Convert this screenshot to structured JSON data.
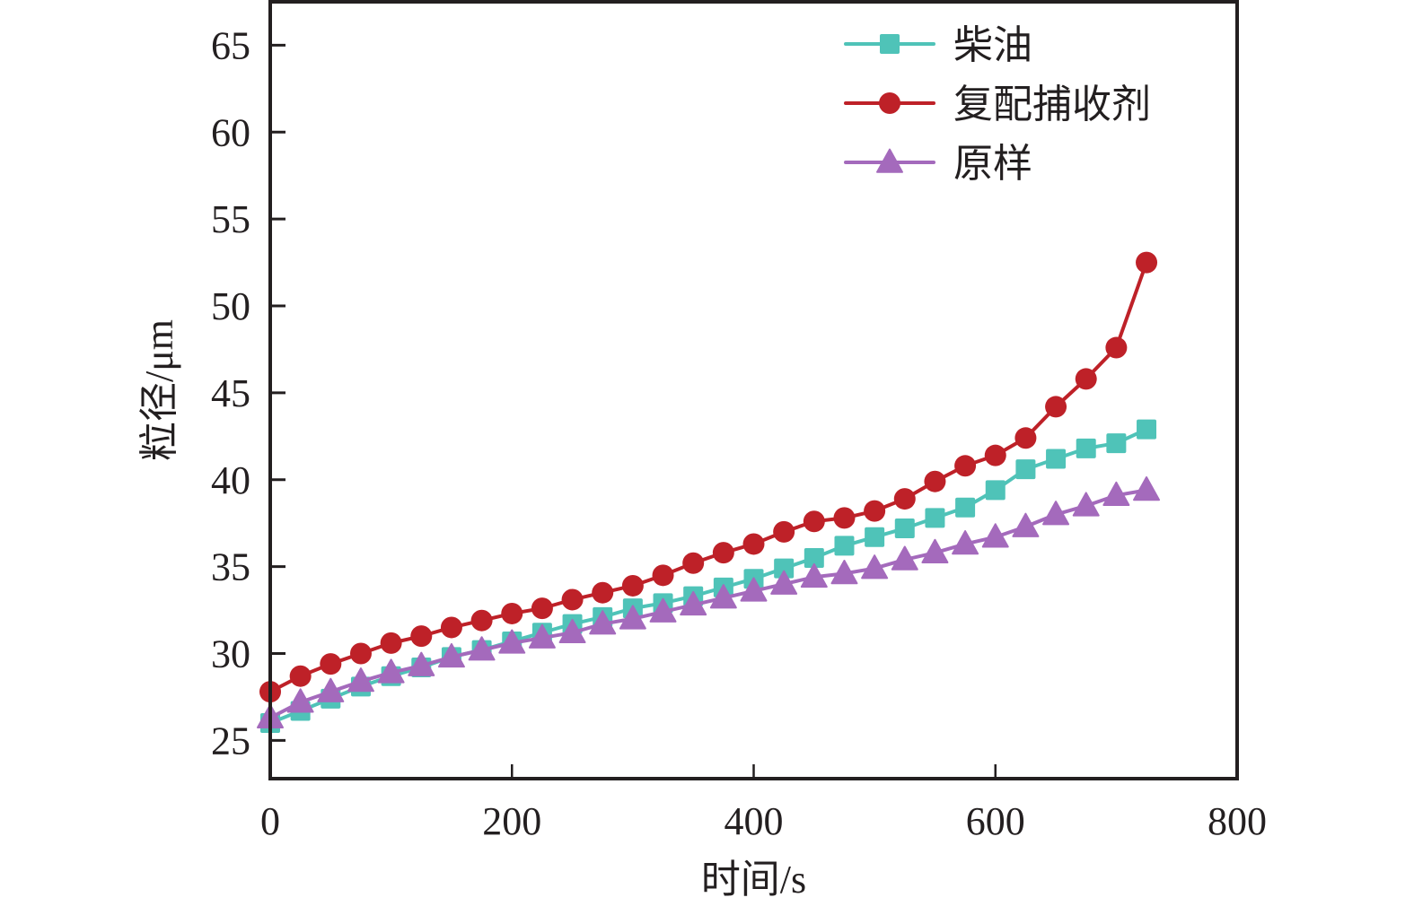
{
  "chart_data": {
    "type": "line",
    "title": "",
    "xlabel": "时间/s",
    "ylabel": "粒径/μm",
    "xlim": [
      0,
      800
    ],
    "ylim": [
      22.8,
      67.5
    ],
    "xticks": [
      0,
      200,
      400,
      600,
      800
    ],
    "yticks": [
      25,
      30,
      35,
      40,
      45,
      50,
      55,
      60,
      65
    ],
    "xtick_labels": [
      "0",
      "200",
      "400",
      "600",
      "800"
    ],
    "ytick_labels": [
      "25",
      "30",
      "35",
      "40",
      "45",
      "50",
      "55",
      "60",
      "65"
    ],
    "grid": false,
    "legend_position": "top-right",
    "x": [
      0,
      25,
      50,
      75,
      100,
      125,
      150,
      175,
      200,
      225,
      250,
      275,
      300,
      325,
      350,
      375,
      400,
      425,
      450,
      475,
      500,
      525,
      550,
      575,
      600,
      625,
      650,
      675,
      700,
      725
    ],
    "series": [
      {
        "name": "柴油",
        "color": "#4fc3b8",
        "marker": "square",
        "values": [
          26.0,
          26.7,
          27.4,
          28.1,
          28.7,
          29.2,
          29.8,
          30.2,
          30.7,
          31.2,
          31.7,
          32.1,
          32.6,
          32.9,
          33.3,
          33.8,
          34.3,
          34.9,
          35.5,
          36.2,
          36.7,
          37.2,
          37.8,
          38.4,
          39.4,
          40.6,
          41.2,
          41.8,
          42.1,
          42.9
        ]
      },
      {
        "name": "复配捕收剂",
        "color": "#be2128",
        "marker": "circle",
        "values": [
          27.8,
          28.7,
          29.4,
          30.0,
          30.6,
          31.0,
          31.5,
          31.9,
          32.3,
          32.6,
          33.1,
          33.5,
          33.9,
          34.5,
          35.2,
          35.8,
          36.3,
          37.0,
          37.6,
          37.8,
          38.2,
          38.9,
          39.9,
          40.8,
          41.4,
          42.4,
          44.2,
          45.8,
          47.6,
          52.5
        ]
      },
      {
        "name": "原样",
        "color": "#a46abc",
        "marker": "triangle",
        "values": [
          26.3,
          27.2,
          27.8,
          28.4,
          28.9,
          29.3,
          29.8,
          30.2,
          30.6,
          30.9,
          31.2,
          31.7,
          32.0,
          32.4,
          32.8,
          33.2,
          33.6,
          34.0,
          34.4,
          34.6,
          34.9,
          35.4,
          35.8,
          36.3,
          36.7,
          37.3,
          38.0,
          38.5,
          39.1,
          39.4
        ]
      }
    ],
    "axis_color": "#231f20"
  }
}
